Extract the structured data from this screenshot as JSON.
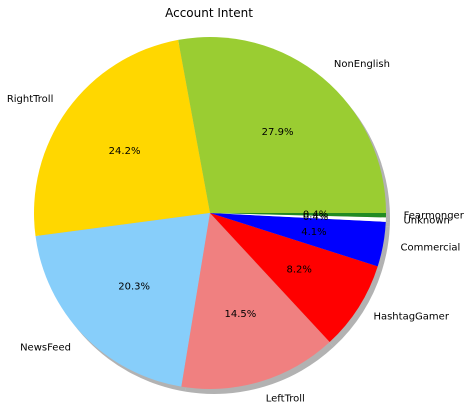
{
  "chart_data": {
    "type": "pie",
    "title": "Account Intent",
    "slices": [
      {
        "label": "NonEnglish",
        "value": 27.9,
        "pct_label": "27.9%",
        "color": "#9ACD32"
      },
      {
        "label": "RightTroll",
        "value": 24.2,
        "pct_label": "24.2%",
        "color": "#FFD700"
      },
      {
        "label": "NewsFeed",
        "value": 20.3,
        "pct_label": "20.3%",
        "color": "#87CEFA"
      },
      {
        "label": "LeftTroll",
        "value": 14.5,
        "pct_label": "14.5%",
        "color": "#F08080"
      },
      {
        "label": "HashtagGamer",
        "value": 8.2,
        "pct_label": "8.2%",
        "color": "#FF0000"
      },
      {
        "label": "Commercial",
        "value": 4.1,
        "pct_label": "4.1%",
        "color": "#0000FF"
      },
      {
        "label": "Unknown",
        "value": 0.4,
        "pct_label": "0.4%",
        "color": "#FFFFFF"
      },
      {
        "label": "Fearmonger",
        "value": 0.4,
        "pct_label": "0.4%",
        "color": "#228B22"
      }
    ],
    "start_angle_deg": 0,
    "direction": "counterclockwise",
    "shadow": true,
    "legend": "none"
  }
}
